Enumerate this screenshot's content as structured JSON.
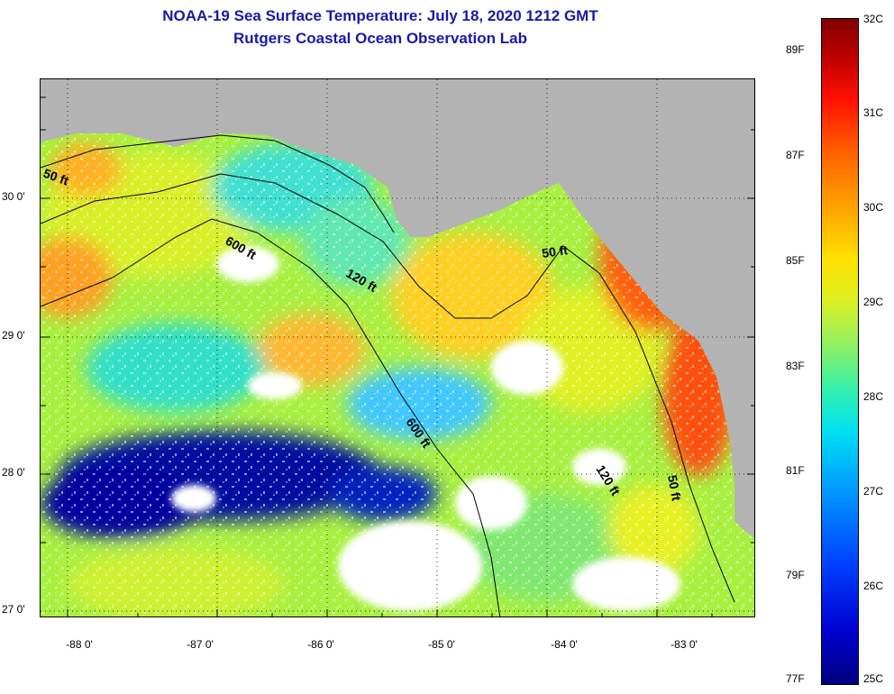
{
  "title": {
    "line1": "NOAA-19 Sea Surface Temperature:  July 18, 2020 1212 GMT",
    "line2": "Rutgers Coastal Ocean Observation Lab"
  },
  "map": {
    "lat_labels": [
      "30 0'",
      "29 0'",
      "28 0'",
      "27 0'"
    ],
    "lon_labels": [
      "-88 0'",
      "-87 0'",
      "-86 0'",
      "-85 0'",
      "-84 0'",
      "-83 0'"
    ],
    "contour_labels": [
      "50 ft",
      "600 ft",
      "120 ft",
      "50 ft",
      "120 ft",
      "50 ft",
      "600 ft"
    ],
    "colors": {
      "land": "#b3b3b3",
      "no_data": "#ffffff",
      "cold": "#000080",
      "mid": "#ffff00",
      "warm": "#ff4000"
    }
  },
  "colorbar": {
    "celsius": [
      "32C",
      "31C",
      "30C",
      "29C",
      "28C",
      "27C",
      "26C",
      "25C"
    ],
    "fahrenheit": [
      "89F",
      "87F",
      "85F",
      "83F",
      "81F",
      "79F",
      "77F"
    ]
  }
}
